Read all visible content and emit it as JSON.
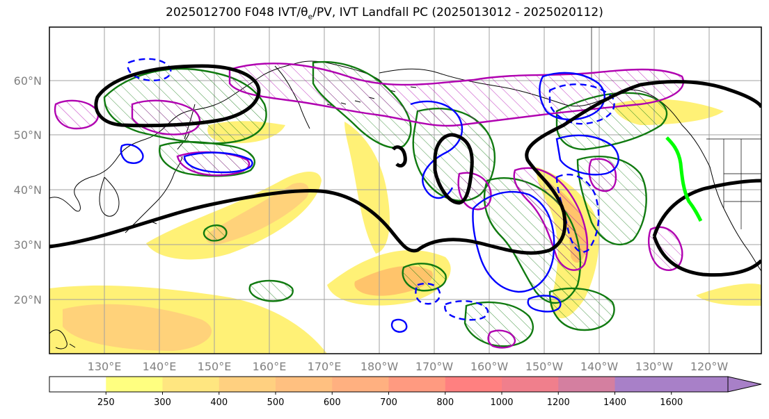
{
  "title_main": "2025012700 F048 IVT/",
  "title_theta": "θ",
  "title_sub": "e",
  "title_rest": "/PV, IVT Landfall PC (2025013012 - 2025020112)",
  "lat_labels": [
    "60°N",
    "50°N",
    "40°N",
    "30°N",
    "20°N"
  ],
  "lon_labels": [
    "130°E",
    "140°E",
    "150°E",
    "160°E",
    "170°E",
    "180°W",
    "170°W",
    "160°W",
    "150°W",
    "140°W",
    "130°W",
    "120°W"
  ],
  "colorbar": {
    "ticks": [
      "250",
      "300",
      "400",
      "500",
      "600",
      "700",
      "800",
      "1000",
      "1200",
      "1400",
      "1600"
    ],
    "colors": [
      "#ffffff",
      "#ffff80",
      "#ffe680",
      "#ffd080",
      "#ffc080",
      "#ffb080",
      "#ff9a80",
      "#ff8080",
      "#f07f8c",
      "#d47fa0",
      "#a880c8"
    ]
  },
  "colors": {
    "ivt_yellow": "#fff176",
    "ivt_orange": "#ffc46b",
    "pv_green": "#107a10",
    "pv_magenta": "#b000b0",
    "theta_blue": "#0000ff",
    "pc_black": "#000000",
    "landfall_green": "#00ff00"
  }
}
